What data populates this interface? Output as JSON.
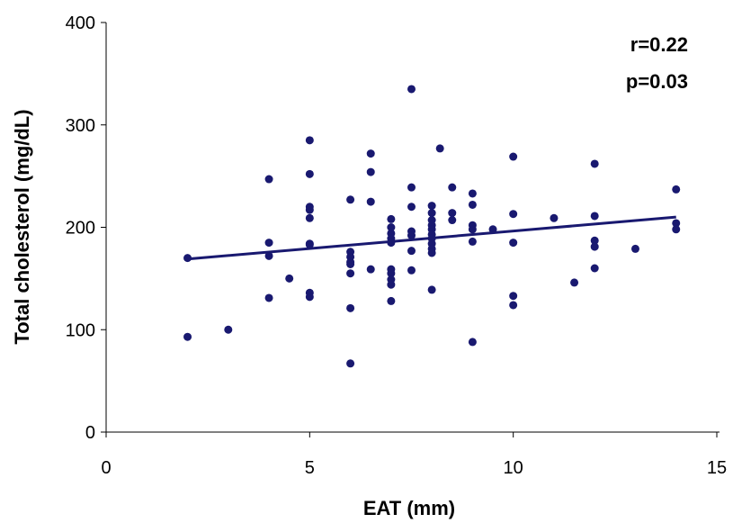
{
  "chart_data": {
    "type": "scatter",
    "xlabel": "EAT (mm)",
    "ylabel": "Total cholesterol (mg/dL)",
    "xlim": [
      0,
      15
    ],
    "ylim": [
      0,
      400
    ],
    "x_ticks": [
      0,
      5,
      10,
      15
    ],
    "y_ticks": [
      0,
      100,
      200,
      300,
      400
    ],
    "x_tick_labels": [
      "0",
      "5",
      "10",
      "15"
    ],
    "y_tick_labels": [
      "0",
      "100",
      "200",
      "300",
      "400"
    ],
    "grid": false,
    "legend": "none",
    "annotations": [
      "r=0.22",
      "p=0.03"
    ],
    "colors": {
      "points": "#191970",
      "line": "#191970",
      "axes": "#000000"
    },
    "points": [
      {
        "x": 2,
        "y": 170
      },
      {
        "x": 2,
        "y": 93
      },
      {
        "x": 3,
        "y": 100
      },
      {
        "x": 4,
        "y": 247
      },
      {
        "x": 4,
        "y": 185
      },
      {
        "x": 4,
        "y": 172
      },
      {
        "x": 4,
        "y": 131
      },
      {
        "x": 4.5,
        "y": 150
      },
      {
        "x": 5,
        "y": 285
      },
      {
        "x": 5,
        "y": 252
      },
      {
        "x": 5,
        "y": 220
      },
      {
        "x": 5,
        "y": 217
      },
      {
        "x": 5,
        "y": 209
      },
      {
        "x": 5,
        "y": 184
      },
      {
        "x": 5,
        "y": 183
      },
      {
        "x": 5,
        "y": 136
      },
      {
        "x": 5,
        "y": 132
      },
      {
        "x": 6,
        "y": 227
      },
      {
        "x": 6,
        "y": 176
      },
      {
        "x": 6,
        "y": 171
      },
      {
        "x": 6,
        "y": 166
      },
      {
        "x": 6,
        "y": 164
      },
      {
        "x": 6,
        "y": 155
      },
      {
        "x": 6,
        "y": 121
      },
      {
        "x": 6,
        "y": 67
      },
      {
        "x": 6.5,
        "y": 272
      },
      {
        "x": 6.5,
        "y": 254
      },
      {
        "x": 6.5,
        "y": 225
      },
      {
        "x": 6.5,
        "y": 159
      },
      {
        "x": 7,
        "y": 208
      },
      {
        "x": 7,
        "y": 200
      },
      {
        "x": 7,
        "y": 194
      },
      {
        "x": 7,
        "y": 189
      },
      {
        "x": 7,
        "y": 185
      },
      {
        "x": 7,
        "y": 159
      },
      {
        "x": 7,
        "y": 155
      },
      {
        "x": 7,
        "y": 149
      },
      {
        "x": 7,
        "y": 144
      },
      {
        "x": 7,
        "y": 128
      },
      {
        "x": 7.5,
        "y": 335
      },
      {
        "x": 7.5,
        "y": 239
      },
      {
        "x": 7.5,
        "y": 220
      },
      {
        "x": 7.5,
        "y": 196
      },
      {
        "x": 7.5,
        "y": 192
      },
      {
        "x": 7.5,
        "y": 177
      },
      {
        "x": 7.5,
        "y": 158
      },
      {
        "x": 8,
        "y": 221
      },
      {
        "x": 8,
        "y": 214
      },
      {
        "x": 8,
        "y": 207
      },
      {
        "x": 8,
        "y": 202
      },
      {
        "x": 8,
        "y": 198
      },
      {
        "x": 8,
        "y": 193
      },
      {
        "x": 8,
        "y": 189
      },
      {
        "x": 8,
        "y": 184
      },
      {
        "x": 8,
        "y": 179
      },
      {
        "x": 8,
        "y": 175
      },
      {
        "x": 8,
        "y": 139
      },
      {
        "x": 8.2,
        "y": 277
      },
      {
        "x": 8.5,
        "y": 239
      },
      {
        "x": 8.5,
        "y": 214
      },
      {
        "x": 8.5,
        "y": 207
      },
      {
        "x": 9,
        "y": 233
      },
      {
        "x": 9,
        "y": 222
      },
      {
        "x": 9,
        "y": 202
      },
      {
        "x": 9,
        "y": 198
      },
      {
        "x": 9,
        "y": 186
      },
      {
        "x": 9,
        "y": 88
      },
      {
        "x": 9.5,
        "y": 198
      },
      {
        "x": 10,
        "y": 269
      },
      {
        "x": 10,
        "y": 213
      },
      {
        "x": 10,
        "y": 185
      },
      {
        "x": 10,
        "y": 133
      },
      {
        "x": 10,
        "y": 124
      },
      {
        "x": 11,
        "y": 209
      },
      {
        "x": 11.5,
        "y": 146
      },
      {
        "x": 12,
        "y": 262
      },
      {
        "x": 12,
        "y": 211
      },
      {
        "x": 12,
        "y": 187
      },
      {
        "x": 12,
        "y": 181
      },
      {
        "x": 12,
        "y": 160
      },
      {
        "x": 13,
        "y": 179
      },
      {
        "x": 14,
        "y": 237
      },
      {
        "x": 14,
        "y": 204
      },
      {
        "x": 14,
        "y": 198
      }
    ],
    "trendline": {
      "x": [
        2,
        14
      ],
      "y": [
        169,
        210
      ]
    }
  }
}
